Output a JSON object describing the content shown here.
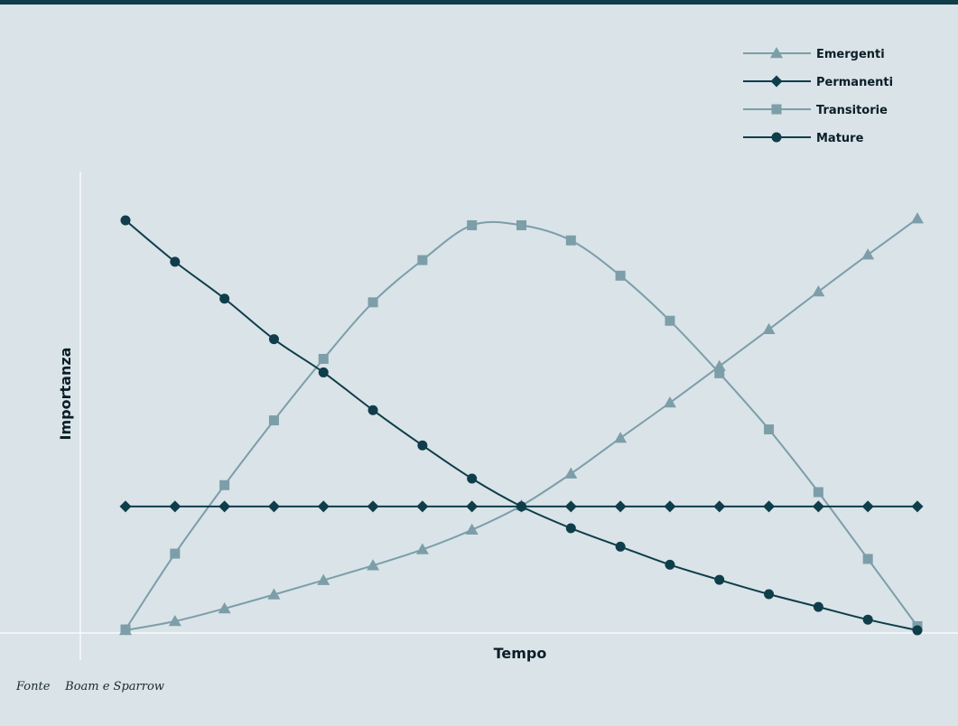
{
  "chart_data": {
    "type": "line",
    "xlabel": "Tempo",
    "ylabel": "Importanza",
    "x": [
      1,
      2,
      3,
      4,
      5,
      6,
      7,
      8,
      9,
      10,
      11,
      12,
      13,
      14,
      15,
      16,
      17
    ],
    "xlim": [
      1,
      17
    ],
    "ylim": [
      0,
      100
    ],
    "grid": false,
    "legend": "top-right",
    "series": [
      {
        "name": "Emergenti",
        "marker": "triangle",
        "color": "#7c9ea9",
        "values": [
          0,
          2.2,
          5.3,
          8.7,
          12.2,
          15.8,
          19.7,
          24.5,
          30.4,
          38.2,
          46.9,
          55.5,
          64.4,
          73.4,
          82.6,
          91.6,
          100.4
        ]
      },
      {
        "name": "Permanenti",
        "marker": "diamond",
        "color": "#0f3d4a",
        "values": [
          30.2,
          30.2,
          30.2,
          30.2,
          30.2,
          30.2,
          30.2,
          30.2,
          30.2,
          30.2,
          30.2,
          30.2,
          30.2,
          30.2,
          30.2,
          30.2,
          30.2
        ]
      },
      {
        "name": "Transitorie",
        "marker": "square",
        "color": "#7c9ea9",
        "values": [
          0.2,
          18.7,
          35.4,
          51.2,
          66.2,
          80.0,
          90.3,
          98.8,
          98.8,
          95.1,
          86.5,
          75.5,
          62.7,
          49.0,
          33.7,
          17.4,
          1.0
        ]
      },
      {
        "name": "Mature",
        "marker": "circle",
        "color": "#0f3d4a",
        "values": [
          100,
          89.9,
          80.9,
          71.0,
          62.9,
          53.7,
          45.1,
          37.0,
          30.2,
          24.9,
          20.4,
          16.0,
          12.3,
          8.8,
          5.7,
          2.6,
          0
        ]
      }
    ]
  },
  "source": {
    "label": "Fonte",
    "text": "Boam e Sparrow"
  }
}
